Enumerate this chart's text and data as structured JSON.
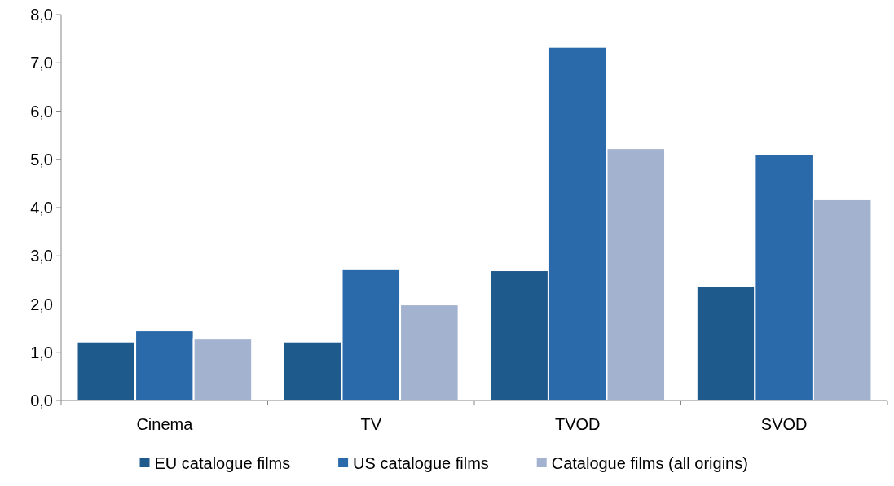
{
  "chart_data": {
    "type": "bar",
    "categories": [
      "Cinema",
      "TV",
      "TVOD",
      "SVOD"
    ],
    "series": [
      {
        "name": "EU catalogue films",
        "color": "#1f5a8c",
        "values": [
          1.22,
          1.22,
          2.7,
          2.38
        ]
      },
      {
        "name": "US catalogue films",
        "color": "#2a6aaa",
        "values": [
          1.45,
          2.72,
          7.33,
          5.11
        ]
      },
      {
        "name": "Catalogue films (all origins)",
        "color": "#a3b3cf",
        "values": [
          1.28,
          1.99,
          5.23,
          4.17
        ]
      }
    ],
    "ylim": [
      0,
      8
    ],
    "yticks": [
      {
        "value": 0,
        "label": "0,0"
      },
      {
        "value": 1,
        "label": "1,0"
      },
      {
        "value": 2,
        "label": "2,0"
      },
      {
        "value": 3,
        "label": "3,0"
      },
      {
        "value": 4,
        "label": "4,0"
      },
      {
        "value": 5,
        "label": "5,0"
      },
      {
        "value": 6,
        "label": "6,0"
      },
      {
        "value": 7,
        "label": "7,0"
      },
      {
        "value": 8,
        "label": "8,0"
      }
    ],
    "grid": false,
    "legend": "bottom"
  }
}
